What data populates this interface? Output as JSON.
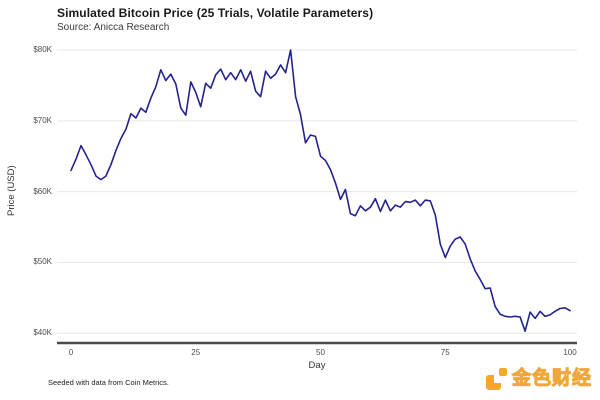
{
  "header": {
    "title": "Simulated Bitcoin Price (25 Trials, Volatile Parameters)",
    "subtitle": "Source: Anicca Research"
  },
  "chart_data": {
    "type": "line",
    "title": "Simulated Bitcoin Price (25 Trials, Volatile Parameters)",
    "subtitle": "Source: Anicca Research",
    "xlabel": "Day",
    "ylabel": "Price (USD)",
    "xlim": [
      0,
      100
    ],
    "ylim": [
      40,
      80
    ],
    "grid": "horizontal-only",
    "legend": "none",
    "x_ticks": [
      0,
      25,
      50,
      75,
      100
    ],
    "y_ticks": [
      {
        "value": 40,
        "label": "$40K"
      },
      {
        "value": 50,
        "label": "$50K"
      },
      {
        "value": 60,
        "label": "$60K"
      },
      {
        "value": 70,
        "label": "$70K"
      },
      {
        "value": 80,
        "label": "$80K"
      }
    ],
    "x": [
      0,
      1,
      2,
      3,
      4,
      5,
      6,
      7,
      8,
      9,
      10,
      11,
      12,
      13,
      14,
      15,
      16,
      17,
      18,
      19,
      20,
      21,
      22,
      23,
      24,
      25,
      26,
      27,
      28,
      29,
      30,
      31,
      32,
      33,
      34,
      35,
      36,
      37,
      38,
      39,
      40,
      41,
      42,
      43,
      44,
      45,
      46,
      47,
      48,
      49,
      50,
      51,
      52,
      53,
      54,
      55,
      56,
      57,
      58,
      59,
      60,
      61,
      62,
      63,
      64,
      65,
      66,
      67,
      68,
      69,
      70,
      71,
      72,
      73,
      74,
      75,
      76,
      77,
      78,
      79,
      80,
      81,
      82,
      83,
      84,
      85,
      86,
      87,
      88,
      89,
      90,
      91,
      92,
      93,
      94,
      95,
      96,
      97,
      98,
      99,
      100
    ],
    "series": [
      {
        "name": "simulated_price_kusd",
        "color": "#23238E",
        "values": [
          63.0,
          64.6,
          66.5,
          65.2,
          63.8,
          62.2,
          61.7,
          62.2,
          63.8,
          65.8,
          67.5,
          68.8,
          71.0,
          70.4,
          71.8,
          71.2,
          73.2,
          74.8,
          77.2,
          75.7,
          76.6,
          75.2,
          71.8,
          70.8,
          75.5,
          74.0,
          72.0,
          75.3,
          74.6,
          76.5,
          77.3,
          75.8,
          76.8,
          75.8,
          77.2,
          75.6,
          77.0,
          74.2,
          73.4,
          77.0,
          76.0,
          76.6,
          77.9,
          76.8,
          80.0,
          73.4,
          70.9,
          66.9,
          68.0,
          67.8,
          65.0,
          64.4,
          63.1,
          61.2,
          58.9,
          60.3,
          56.9,
          56.6,
          58.0,
          57.3,
          57.8,
          59.0,
          57.2,
          58.8,
          57.3,
          58.1,
          57.8,
          58.6,
          58.5,
          58.8,
          58.0,
          58.8,
          58.7,
          56.7,
          52.6,
          50.7,
          52.3,
          53.3,
          53.6,
          52.6,
          50.5,
          48.8,
          47.6,
          46.3,
          46.4,
          43.8,
          42.7,
          42.4,
          42.3,
          42.4,
          42.3,
          40.3,
          43.0,
          42.1,
          43.1,
          42.4,
          42.6,
          43.1,
          43.5,
          43.6,
          43.2
        ]
      }
    ]
  },
  "axes": {
    "x_label": "Day",
    "y_label": "Price (USD)"
  },
  "footer": {
    "caption": "Seeded with data from Coin Metrics.",
    "logo_text": "金色财经"
  },
  "colors": {
    "line": "#23238E",
    "gridline": "#e8e8e8",
    "axis_line": "#4a4a4a",
    "logo_orange": "#f5a727"
  }
}
